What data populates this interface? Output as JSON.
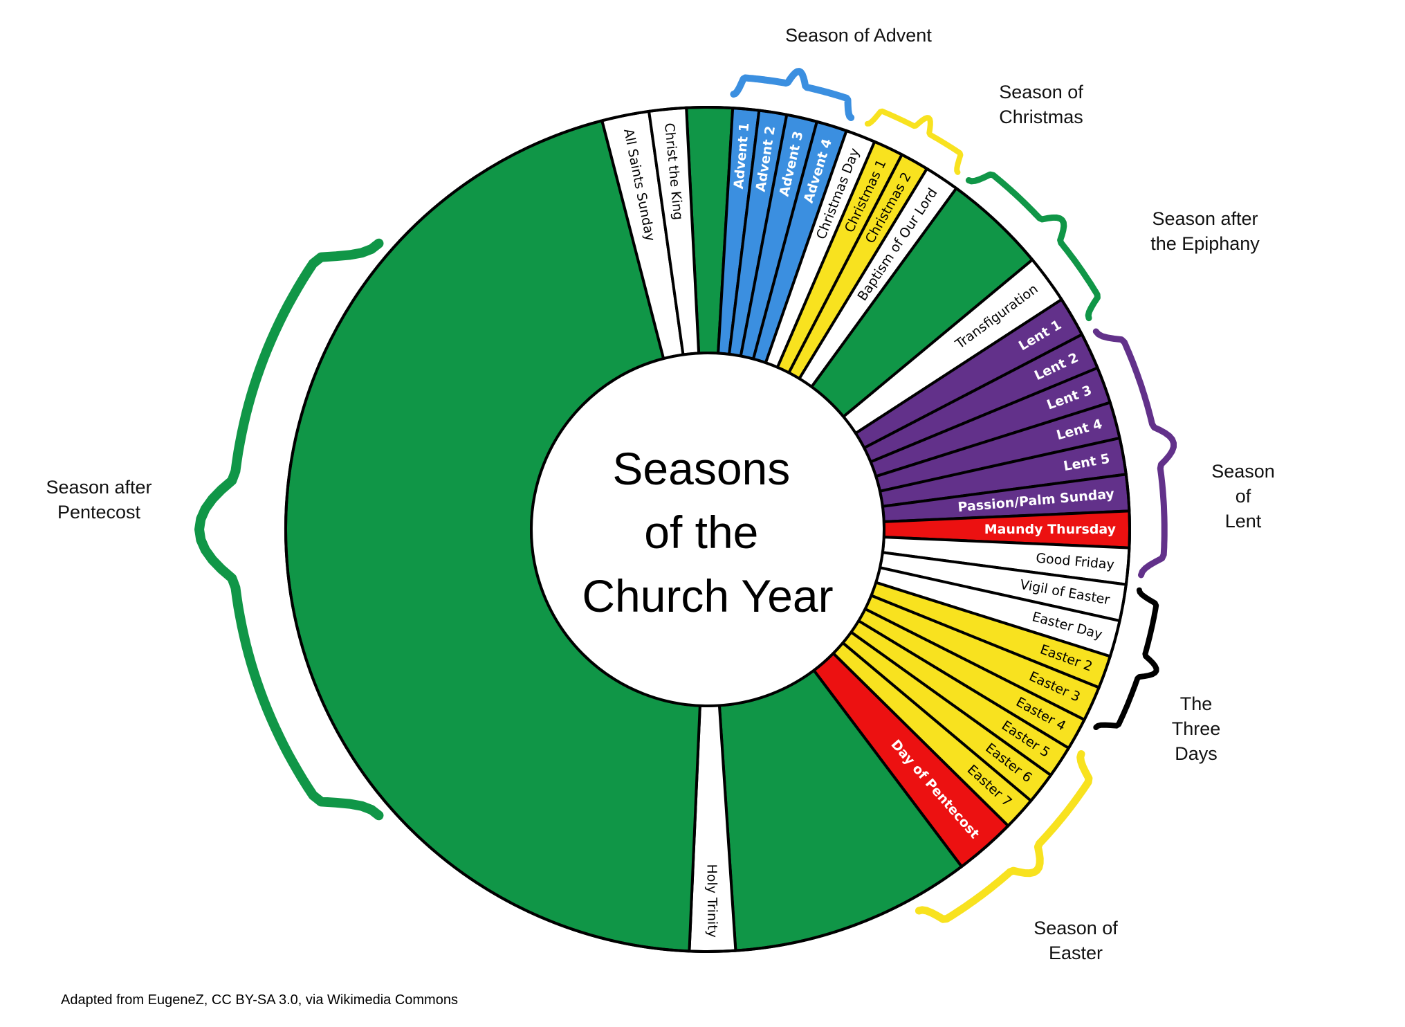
{
  "title_lines": [
    "Seasons",
    "of the",
    "Church Year"
  ],
  "credit": "Adapted from EugeneZ, CC BY-SA 3.0, via Wikimedia Commons",
  "colors": {
    "green": "#109647",
    "white": "#ffffff",
    "blue": "#3b8fe0",
    "yellow": "#f8e21f",
    "purple": "#62318a",
    "red": "#ec1111",
    "black": "#000000"
  },
  "segments": [
    {
      "label": "",
      "color": "green"
    },
    {
      "label": "Advent 1",
      "color": "blue",
      "text_color": "white",
      "bold": true
    },
    {
      "label": "Advent 2",
      "color": "blue",
      "text_color": "white",
      "bold": true
    },
    {
      "label": "Advent 3",
      "color": "blue",
      "text_color": "white",
      "bold": true
    },
    {
      "label": "Advent 4",
      "color": "blue",
      "text_color": "white",
      "bold": true
    },
    {
      "label": "Christmas Day",
      "color": "white",
      "text_color": "black"
    },
    {
      "label": "Christmas 1",
      "color": "yellow",
      "text_color": "black"
    },
    {
      "label": "Christmas 2",
      "color": "yellow",
      "text_color": "black"
    },
    {
      "label": "Baptism of Our Lord",
      "color": "white",
      "text_color": "black"
    },
    {
      "label": "",
      "color": "green"
    },
    {
      "label": "Transfiguration",
      "color": "white",
      "text_color": "black"
    },
    {
      "label": "Lent 1",
      "color": "purple",
      "text_color": "white",
      "bold": true
    },
    {
      "label": "Lent 2",
      "color": "purple",
      "text_color": "white",
      "bold": true
    },
    {
      "label": "Lent 3",
      "color": "purple",
      "text_color": "white",
      "bold": true
    },
    {
      "label": "Lent 4",
      "color": "purple",
      "text_color": "white",
      "bold": true
    },
    {
      "label": "Lent 5",
      "color": "purple",
      "text_color": "white",
      "bold": true
    },
    {
      "label": "Passion/Palm Sunday",
      "color": "purple",
      "text_color": "white",
      "bold": true
    },
    {
      "label": "Maundy Thursday",
      "color": "red",
      "text_color": "white",
      "bold": true
    },
    {
      "label": "Good Friday",
      "color": "white",
      "text_color": "black"
    },
    {
      "label": "Vigil of Easter",
      "color": "white",
      "text_color": "black"
    },
    {
      "label": "Easter Day",
      "color": "white",
      "text_color": "black"
    },
    {
      "label": "Easter 2",
      "color": "yellow",
      "text_color": "black"
    },
    {
      "label": "Easter 3",
      "color": "yellow",
      "text_color": "black"
    },
    {
      "label": "Easter 4",
      "color": "yellow",
      "text_color": "black"
    },
    {
      "label": "Easter 5",
      "color": "yellow",
      "text_color": "black"
    },
    {
      "label": "Easter 6",
      "color": "yellow",
      "text_color": "black"
    },
    {
      "label": "Easter 7",
      "color": "yellow",
      "text_color": "black"
    },
    {
      "label": "Day of Pentecost",
      "color": "red",
      "text_color": "white",
      "bold": true
    },
    {
      "label": "",
      "color": "green"
    },
    {
      "label": "Holy Trinity",
      "color": "white",
      "text_color": "black"
    },
    {
      "label": "",
      "color": "green"
    },
    {
      "label": "All Saints Sunday",
      "color": "white",
      "text_color": "black"
    },
    {
      "label": "Christ the King",
      "color": "white",
      "text_color": "black"
    }
  ],
  "seasons": [
    {
      "label_lines": [
        "Season of Advent"
      ],
      "color": "blue"
    },
    {
      "label_lines": [
        "Season of",
        "Christmas"
      ],
      "color": "yellow"
    },
    {
      "label_lines": [
        "Season after",
        "the Epiphany"
      ],
      "color": "green"
    },
    {
      "label_lines": [
        "Season",
        "of",
        "Lent"
      ],
      "color": "purple"
    },
    {
      "label_lines": [
        "The",
        "Three",
        "Days"
      ],
      "color": "black"
    },
    {
      "label_lines": [
        "Season of",
        "Easter"
      ],
      "color": "yellow"
    },
    {
      "label_lines": [
        "Season after",
        "Pentecost"
      ],
      "color": "green"
    }
  ]
}
